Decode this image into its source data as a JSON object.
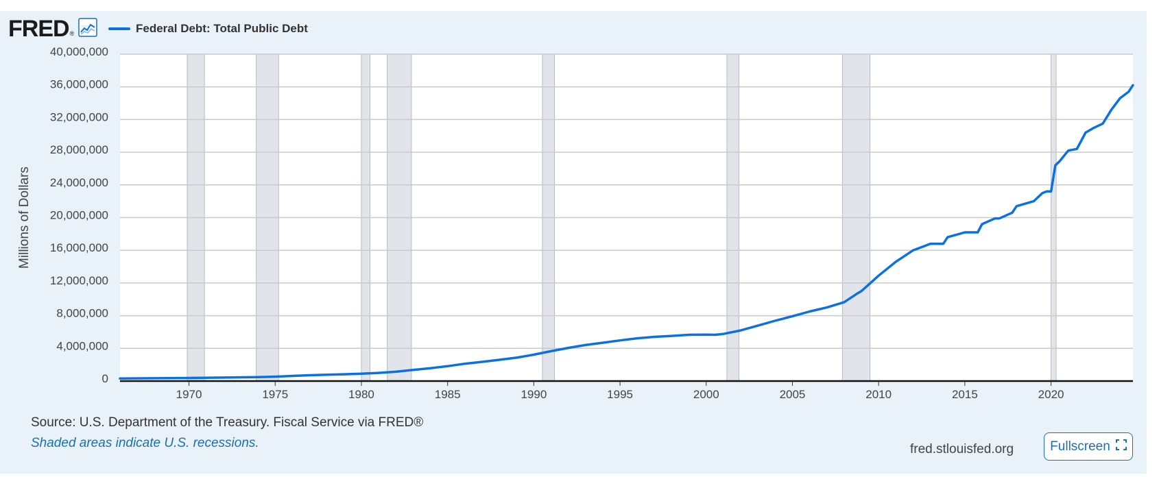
{
  "header": {
    "logo_text": "FRED",
    "logo_mark": "®",
    "logo_icon": "line-graph-icon",
    "legend_label": "Federal Debt: Total Public Debt"
  },
  "footer": {
    "source": "Source: U.S. Department of the Treasury. Fiscal Service via FRED®",
    "recession_note": "Shaded areas indicate U.S. recessions.",
    "site_url": "fred.stlouisfed.org",
    "fullscreen_label": "Fullscreen",
    "fullscreen_icon": "expand-icon"
  },
  "colors": {
    "series": "#0b71e0",
    "panel": "#e9f1f9",
    "recession": "#e1e5ea",
    "link": "#1a6eb7"
  },
  "chart_data": {
    "type": "line",
    "title": "",
    "xlabel": "",
    "ylabel": "Millions of Dollars",
    "xlim": [
      1966.0,
      2024.75
    ],
    "ylim": [
      0,
      40000000
    ],
    "y_ticks": [
      0,
      4000000,
      8000000,
      12000000,
      16000000,
      20000000,
      24000000,
      28000000,
      32000000,
      36000000,
      40000000
    ],
    "y_tick_labels": [
      "0",
      "4,000,000",
      "8,000,000",
      "12,000,000",
      "16,000,000",
      "20,000,000",
      "24,000,000",
      "28,000,000",
      "32,000,000",
      "36,000,000",
      "40,000,000"
    ],
    "x_ticks": [
      1970,
      1975,
      1980,
      1985,
      1990,
      1995,
      2000,
      2005,
      2010,
      2015,
      2020
    ],
    "x_tick_labels": [
      "1970",
      "1975",
      "1980",
      "1985",
      "1990",
      "1995",
      "2000",
      "2005",
      "2010",
      "2015",
      "2020"
    ],
    "grid": true,
    "legend": "top-left",
    "recessions": [
      [
        1969.9,
        1970.9
      ],
      [
        1973.9,
        1975.2
      ],
      [
        1980.0,
        1980.5
      ],
      [
        1981.5,
        1982.9
      ],
      [
        1990.5,
        1991.2
      ],
      [
        2001.2,
        2001.9
      ],
      [
        2007.9,
        2009.5
      ],
      [
        2020.0,
        2020.3
      ]
    ],
    "series": [
      {
        "name": "Federal Debt: Total Public Debt",
        "x": [
          1966,
          1968,
          1970,
          1972,
          1974,
          1975,
          1976,
          1977,
          1978,
          1979,
          1980,
          1981,
          1982,
          1983,
          1984,
          1985,
          1986,
          1987,
          1988,
          1989,
          1990,
          1991,
          1992,
          1993,
          1994,
          1995,
          1996,
          1997,
          1998,
          1999,
          2000,
          2000.5,
          2001,
          2002,
          2003,
          2004,
          2005,
          2006,
          2007,
          2008,
          2008.75,
          2009,
          2010,
          2011,
          2012,
          2013,
          2013.75,
          2014,
          2015,
          2015.75,
          2016,
          2016.75,
          2017,
          2017.75,
          2018,
          2019,
          2019.5,
          2019.75,
          2020.0,
          2020.25,
          2020.5,
          2021,
          2021.5,
          2022,
          2022.5,
          2023,
          2023.5,
          2024,
          2024.5,
          2024.75
        ],
        "values": [
          320000,
          345000,
          380000,
          430000,
          480000,
          540000,
          630000,
          710000,
          780000,
          830000,
          900000,
          1000000,
          1140000,
          1370000,
          1570000,
          1820000,
          2120000,
          2350000,
          2600000,
          2860000,
          3230000,
          3660000,
          4060000,
          4410000,
          4690000,
          4970000,
          5230000,
          5410000,
          5530000,
          5660000,
          5680000,
          5660000,
          5770000,
          6200000,
          6780000,
          7380000,
          7930000,
          8510000,
          9010000,
          9650000,
          10700000,
          11000000,
          12900000,
          14600000,
          16000000,
          16800000,
          16800000,
          17600000,
          18200000,
          18200000,
          19200000,
          19900000,
          19900000,
          20600000,
          21400000,
          22000000,
          23000000,
          23200000,
          23200000,
          26400000,
          26900000,
          28200000,
          28400000,
          30400000,
          31000000,
          31500000,
          33200000,
          34600000,
          35400000,
          36200000
        ]
      }
    ]
  }
}
